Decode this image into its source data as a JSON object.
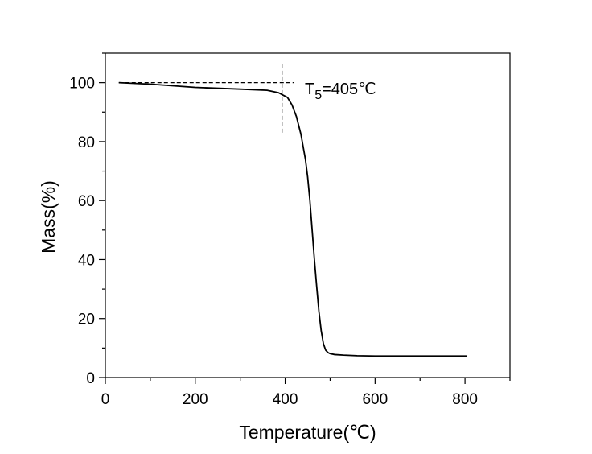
{
  "chart_data": {
    "type": "line",
    "xlabel": "Temperature(℃)",
    "ylabel": "Mass(%)",
    "xlim": [
      0,
      900
    ],
    "ylim": [
      0,
      110
    ],
    "x_ticks": [
      0,
      200,
      400,
      600,
      800
    ],
    "y_ticks": [
      0,
      20,
      40,
      60,
      80,
      100
    ],
    "x_minor_step": 100,
    "y_minor_step": 10,
    "grid": false,
    "legend": "none",
    "line_color": "#000000",
    "series": [
      {
        "x": [
          30,
          100,
          200,
          300,
          360,
          385,
          395,
          405,
          415,
          425,
          435,
          445,
          450,
          455,
          460,
          465,
          470,
          475,
          480,
          485,
          490,
          495,
          500,
          510,
          530,
          560,
          600,
          700,
          805
        ],
        "y": [
          100,
          99.5,
          98.4,
          97.8,
          97.4,
          96.6,
          95.8,
          95,
          92.5,
          88.5,
          82.5,
          74,
          68,
          60,
          50,
          40,
          31,
          22.5,
          16,
          11.5,
          9.3,
          8.5,
          8.1,
          7.8,
          7.6,
          7.4,
          7.3,
          7.3,
          7.3
        ]
      }
    ],
    "annotations": [
      {
        "label_main": "T",
        "label_sub": "5",
        "label_rest": "=405℃",
        "crosshair_x": 393,
        "crosshair_y": 100,
        "h_line_x": [
          30,
          420
        ],
        "v_line_y": [
          83,
          107
        ]
      }
    ]
  }
}
